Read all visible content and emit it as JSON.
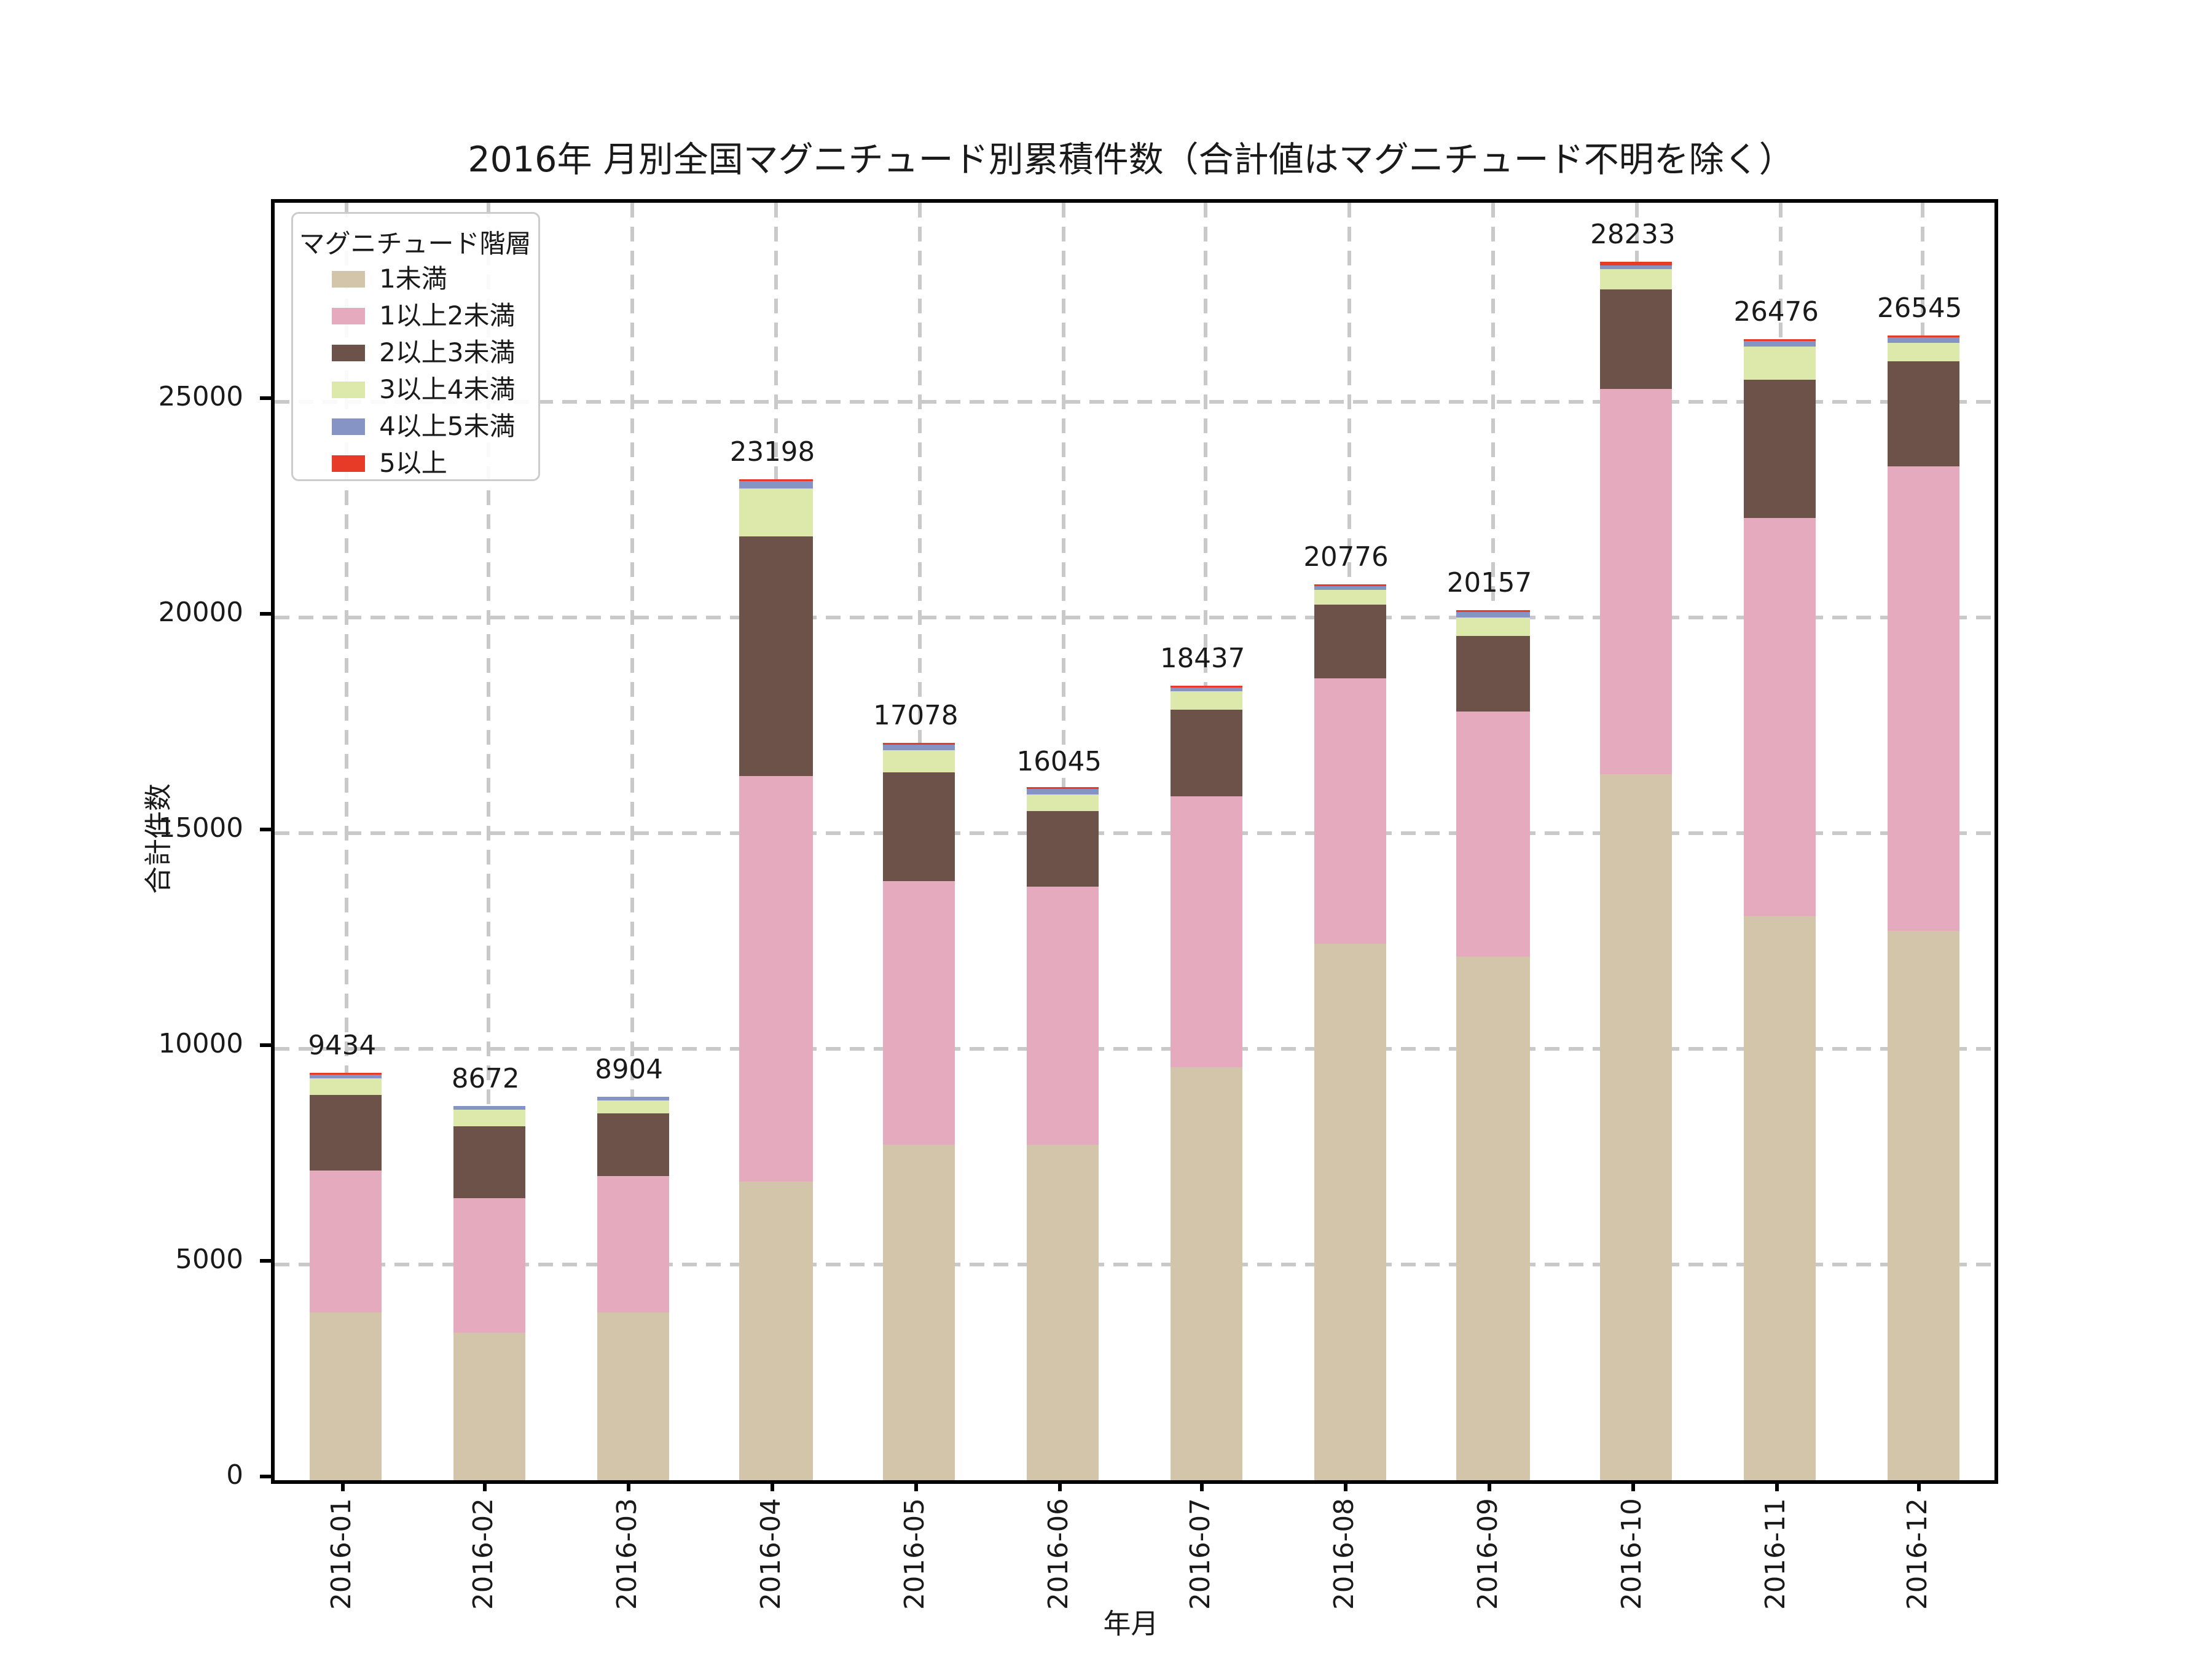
{
  "figure": {
    "background": "#ffffff",
    "text_color": "#1a1a1a",
    "grid_color": "#c9c9c9"
  },
  "chart_data": {
    "type": "bar",
    "stacked": true,
    "title": "2016年 月別全国マグニチュード別累積件数（合計値はマグニチュード不明を除く）",
    "xlabel": "年月",
    "ylabel": "合計件数",
    "legend_title": "マグニチュード階層",
    "legend_position": "upper left",
    "grid": true,
    "ylim": [
      0,
      29633
    ],
    "yticks": [
      0,
      5000,
      10000,
      15000,
      20000,
      25000
    ],
    "categories": [
      "2016-01",
      "2016-02",
      "2016-03",
      "2016-04",
      "2016-05",
      "2016-06",
      "2016-07",
      "2016-08",
      "2016-09",
      "2016-10",
      "2016-11",
      "2016-12"
    ],
    "series": [
      {
        "name": "1未満",
        "color": "#d3c5a9",
        "values": [
          3869,
          3423,
          3888,
          6923,
          7800,
          7775,
          9580,
          12430,
          12120,
          16375,
          13080,
          12717
        ]
      },
      {
        "name": "1以上2未満",
        "color": "#e5aabe",
        "values": [
          3300,
          3102,
          3161,
          9420,
          6090,
          6000,
          6287,
          6151,
          5702,
          8923,
          9216,
          10773
        ]
      },
      {
        "name": "2以上3未満",
        "color": "#6d5249",
        "values": [
          1780,
          1700,
          1450,
          5520,
          2543,
          1760,
          2010,
          1725,
          1765,
          2330,
          3205,
          2450
        ]
      },
      {
        "name": "3以上4未満",
        "color": "#dde9aa",
        "values": [
          375,
          375,
          310,
          1130,
          490,
          370,
          420,
          340,
          430,
          460,
          790,
          450
        ]
      },
      {
        "name": "4以上5未満",
        "color": "#8593c5",
        "values": [
          75,
          72,
          95,
          165,
          125,
          120,
          105,
          95,
          105,
          100,
          140,
          110
        ]
      },
      {
        "name": "5以上",
        "color": "#e83b27",
        "values": [
          35,
          0,
          0,
          40,
          30,
          20,
          35,
          35,
          35,
          45,
          45,
          45
        ]
      }
    ],
    "totals": [
      9434,
      8672,
      8904,
      23198,
      17078,
      16045,
      18437,
      20776,
      20157,
      28233,
      26476,
      26545
    ]
  }
}
